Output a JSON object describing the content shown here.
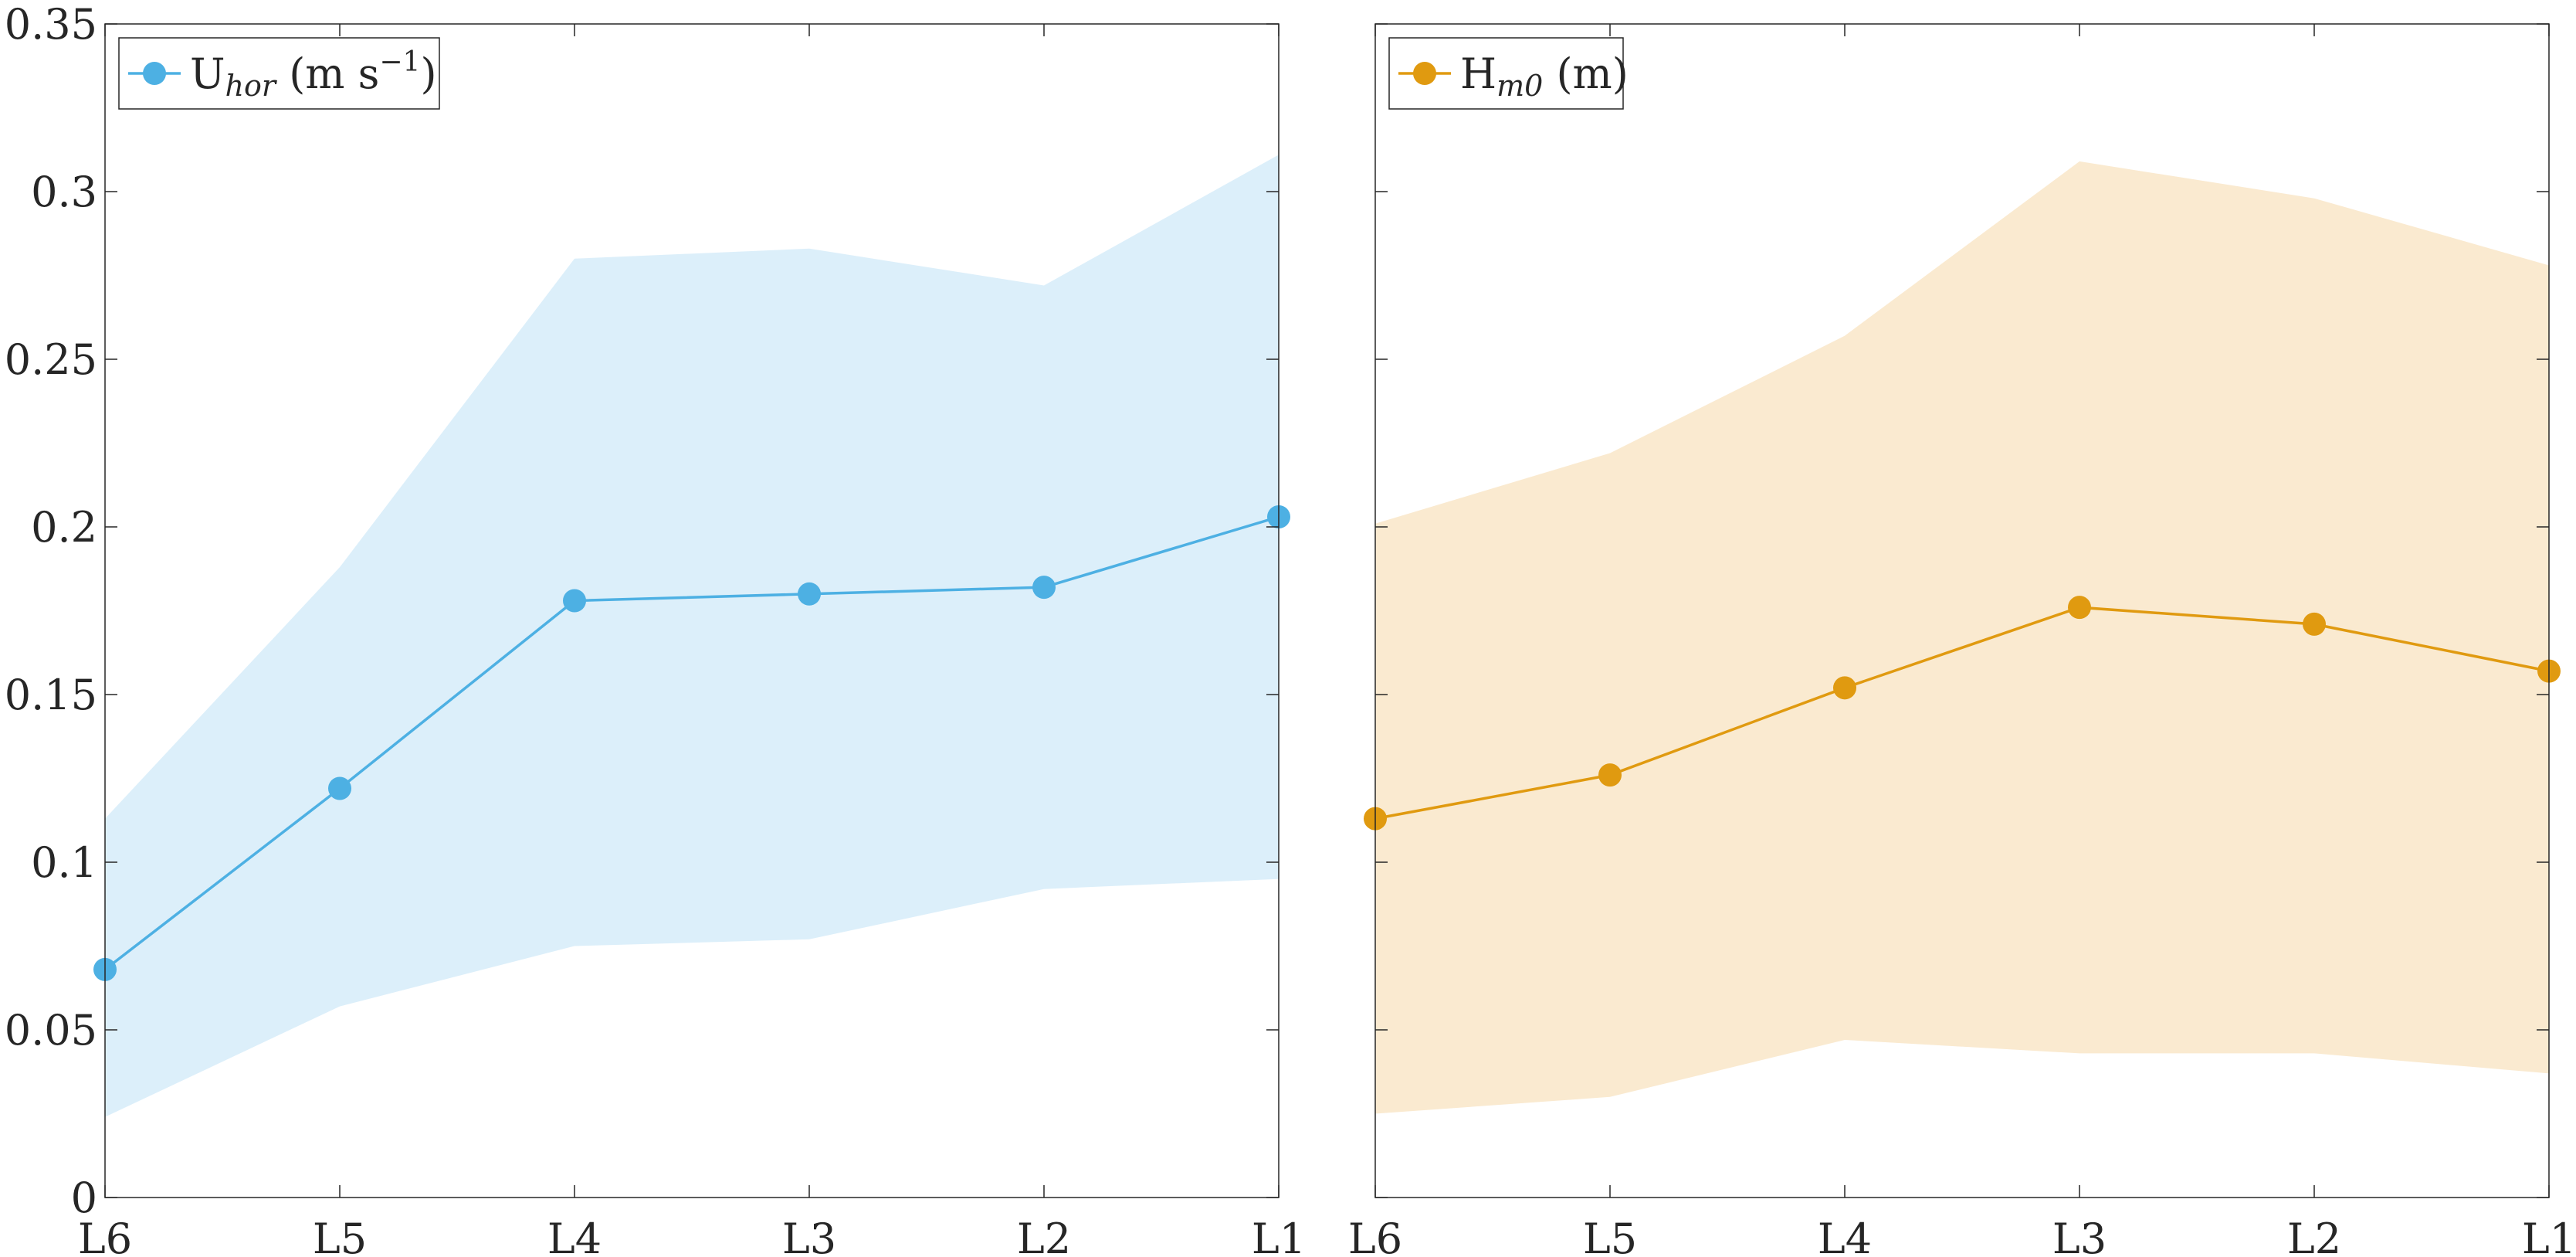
{
  "chart_data": [
    {
      "type": "line",
      "categories": [
        "L6",
        "L5",
        "L4",
        "L3",
        "L2",
        "L1"
      ],
      "ylim": [
        0,
        0.35
      ],
      "yticks": [
        0,
        0.05,
        0.1,
        0.15,
        0.2,
        0.25,
        0.3,
        0.35
      ],
      "ytick_labels": [
        "0",
        "0.05",
        "0.1",
        "0.15",
        "0.2",
        "0.25",
        "0.3",
        "0.35"
      ],
      "show_ytick_labels": true,
      "legend_position": "top-left",
      "series": [
        {
          "name": "U_hor (m s^-1)",
          "legend_main": "U",
          "legend_sub": "hor",
          "legend_mid": " (m s",
          "legend_sup": "−1",
          "legend_end": ")",
          "values": [
            0.068,
            0.122,
            0.178,
            0.18,
            0.182,
            0.203
          ],
          "band_upper": [
            0.113,
            0.188,
            0.28,
            0.283,
            0.272,
            0.311
          ],
          "band_lower": [
            0.024,
            0.057,
            0.075,
            0.077,
            0.092,
            0.095
          ],
          "color": "#4db0e3",
          "band_color": "#dceffa"
        }
      ]
    },
    {
      "type": "line",
      "categories": [
        "L6",
        "L5",
        "L4",
        "L3",
        "L2",
        "L1"
      ],
      "ylim": [
        0,
        0.35
      ],
      "yticks": [
        0,
        0.05,
        0.1,
        0.15,
        0.2,
        0.25,
        0.3,
        0.35
      ],
      "ytick_labels": [
        "0",
        "0.05",
        "0.1",
        "0.15",
        "0.2",
        "0.25",
        "0.3",
        "0.35"
      ],
      "show_ytick_labels": false,
      "legend_position": "top-left",
      "series": [
        {
          "name": "H_m0 (m)",
          "legend_main": "H",
          "legend_sub": "m0",
          "legend_mid": " (m)",
          "legend_sup": "",
          "legend_end": "",
          "values": [
            0.113,
            0.126,
            0.152,
            0.176,
            0.171,
            0.157
          ],
          "band_upper": [
            0.201,
            0.222,
            0.257,
            0.309,
            0.298,
            0.278
          ],
          "band_lower": [
            0.025,
            0.03,
            0.047,
            0.043,
            0.043,
            0.037
          ],
          "color": "#e09a10",
          "band_color": "#faead0"
        }
      ]
    }
  ]
}
